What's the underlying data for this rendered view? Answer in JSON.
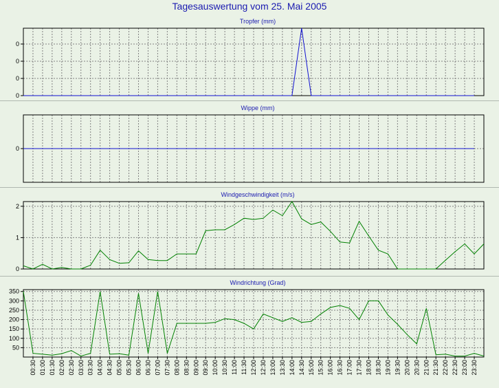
{
  "page_title": "Tagesauswertung vom 25. Mai 2005",
  "colors": {
    "background": "#eaf2e6",
    "title": "#1a1ab0",
    "blue_series": "#1010d0",
    "green_series": "#008000",
    "grid": "#808080"
  },
  "chart_data": [
    {
      "type": "line",
      "title": "Tropfer (mm)",
      "color": "#1010d0",
      "ylim": [
        0,
        1
      ],
      "yticks": [
        "0",
        "0",
        "0",
        "0"
      ],
      "x_labels": [
        "00:30",
        "01:00",
        "01:30",
        "02:00",
        "02:30",
        "03:00",
        "03:30",
        "04:00",
        "04:30",
        "05:00",
        "05:30",
        "06:00",
        "06:30",
        "07:00",
        "07:30",
        "08:00",
        "08:30",
        "09:00",
        "09:30",
        "10:00",
        "10:30",
        "11:00",
        "11:30",
        "12:00",
        "12:30",
        "13:00",
        "13:30",
        "14:00",
        "14:30",
        "15:00",
        "15:30",
        "16:00",
        "16:30",
        "17:00",
        "17:30",
        "18:00",
        "18:30",
        "19:00",
        "19:30",
        "20:00",
        "20:30",
        "21:00",
        "21:30",
        "22:00",
        "22:30",
        "23:00",
        "23:30"
      ],
      "series": [
        {
          "values": [
            0,
            0,
            0,
            0,
            0,
            0,
            0,
            0,
            0,
            0,
            0,
            0,
            0,
            0,
            0,
            0,
            0,
            0,
            0,
            0,
            0,
            0,
            0,
            0,
            0,
            0,
            0,
            0,
            0,
            1,
            0,
            0,
            0,
            0,
            0,
            0,
            0,
            0,
            0,
            0,
            0,
            0,
            0,
            0,
            0,
            0,
            0,
            0
          ]
        }
      ]
    },
    {
      "type": "line",
      "title": "Wippe (mm)",
      "color": "#1010d0",
      "ylim": [
        -1,
        1
      ],
      "yticks": [
        "0"
      ],
      "series": [
        {
          "values": [
            0,
            0,
            0,
            0,
            0,
            0,
            0,
            0,
            0,
            0,
            0,
            0,
            0,
            0,
            0,
            0,
            0,
            0,
            0,
            0,
            0,
            0,
            0,
            0,
            0,
            0,
            0,
            0,
            0,
            0,
            0,
            0,
            0,
            0,
            0,
            0,
            0,
            0,
            0,
            0,
            0,
            0,
            0,
            0,
            0,
            0,
            0,
            0
          ]
        }
      ]
    },
    {
      "type": "line",
      "title": "Windgeschwindigkeit (m/s)",
      "color": "#008000",
      "ylim": [
        0,
        2.15
      ],
      "yticks": [
        "0",
        "1",
        "2"
      ],
      "series": [
        {
          "values": [
            0.1,
            0,
            0.15,
            0,
            0.05,
            0,
            0,
            0.12,
            0.6,
            0.3,
            0.18,
            0.2,
            0.58,
            0.3,
            0.27,
            0.27,
            0.48,
            0.48,
            0.48,
            1.22,
            1.25,
            1.25,
            1.42,
            1.62,
            1.58,
            1.62,
            1.88,
            1.7,
            2.15,
            1.6,
            1.42,
            1.5,
            1.2,
            0.86,
            0.83,
            1.52,
            1.05,
            0.6,
            0.48,
            0,
            0,
            0,
            0,
            0,
            0.28,
            0.55,
            0.8,
            0.48,
            0.8
          ]
        }
      ]
    },
    {
      "type": "line",
      "title": "Windrichtung (Grad)",
      "color": "#008000",
      "ylim": [
        0,
        360
      ],
      "yticks": [
        "50",
        "100",
        "150",
        "200",
        "250",
        "300",
        "350"
      ],
      "series": [
        {
          "values": [
            350,
            20,
            15,
            10,
            18,
            35,
            5,
            20,
            350,
            15,
            18,
            10,
            340,
            20,
            350,
            20,
            180,
            180,
            180,
            180,
            185,
            205,
            200,
            180,
            150,
            230,
            210,
            190,
            210,
            185,
            190,
            230,
            265,
            275,
            260,
            200,
            300,
            300,
            225,
            175,
            120,
            70,
            260,
            12,
            15,
            5,
            5,
            20,
            5
          ]
        }
      ]
    }
  ]
}
